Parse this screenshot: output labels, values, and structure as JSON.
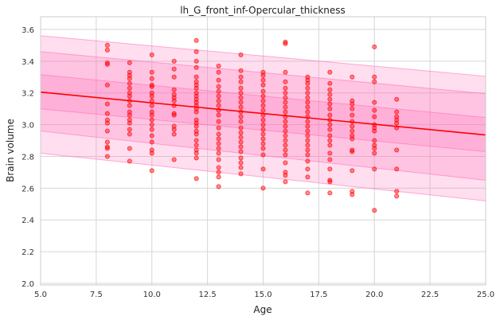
{
  "chart_data": {
    "type": "scatter",
    "title": "lh_G_front_inf-Opercular_thickness",
    "xlabel": "Age",
    "ylabel": "Brain volume",
    "xlim": [
      5.0,
      25.0
    ],
    "ylim": [
      1.99,
      3.68
    ],
    "xticks": [
      "5.0",
      "7.5",
      "10.0",
      "12.5",
      "15.0",
      "17.5",
      "20.0",
      "22.5",
      "25.0"
    ],
    "yticks": [
      "2.0",
      "2.2",
      "2.4",
      "2.6",
      "2.8",
      "3.0",
      "3.2",
      "3.4",
      "3.6"
    ],
    "grid": true,
    "point_color": "#ff0000",
    "line_color": "#ff0000",
    "band_color": "#ff69b4",
    "fit_line": {
      "x": [
        5.0,
        25.0
      ],
      "y": [
        3.205,
        2.935
      ]
    },
    "bands": [
      {
        "lower": [
          3.1,
          2.83
        ],
        "upper": [
          3.315,
          3.045
        ]
      },
      {
        "lower": [
          2.96,
          2.65
        ],
        "upper": [
          3.46,
          3.195
        ]
      },
      {
        "lower": [
          2.82,
          2.52
        ],
        "upper": [
          3.56,
          3.305
        ]
      }
    ],
    "points": [
      [
        8,
        3.5
      ],
      [
        8,
        3.47
      ],
      [
        8,
        3.39
      ],
      [
        8,
        3.38
      ],
      [
        8,
        3.25
      ],
      [
        8,
        3.13
      ],
      [
        8,
        3.07
      ],
      [
        8,
        3.03
      ],
      [
        8,
        3.01
      ],
      [
        8,
        2.96
      ],
      [
        8,
        2.89
      ],
      [
        8,
        2.86
      ],
      [
        8,
        2.85
      ],
      [
        8,
        2.8
      ],
      [
        9,
        3.39
      ],
      [
        9,
        3.33
      ],
      [
        9,
        3.31
      ],
      [
        9,
        3.29
      ],
      [
        9,
        3.26
      ],
      [
        9,
        3.23
      ],
      [
        9,
        3.2
      ],
      [
        9,
        3.18
      ],
      [
        9,
        3.15
      ],
      [
        9,
        3.12
      ],
      [
        9,
        3.08
      ],
      [
        9,
        3.06
      ],
      [
        9,
        3.03
      ],
      [
        9,
        3.01
      ],
      [
        9,
        2.97
      ],
      [
        9,
        2.94
      ],
      [
        9,
        2.85
      ],
      [
        9,
        2.77
      ],
      [
        10,
        3.44
      ],
      [
        10,
        3.33
      ],
      [
        10,
        3.29
      ],
      [
        10,
        3.25
      ],
      [
        10,
        3.24
      ],
      [
        10,
        3.2
      ],
      [
        10,
        3.18
      ],
      [
        10,
        3.15
      ],
      [
        10,
        3.12
      ],
      [
        10,
        3.08
      ],
      [
        10,
        3.06
      ],
      [
        10,
        3.03
      ],
      [
        10,
        3.0
      ],
      [
        10,
        2.97
      ],
      [
        10,
        2.93
      ],
      [
        10,
        2.89
      ],
      [
        10,
        2.84
      ],
      [
        10,
        2.82
      ],
      [
        10,
        2.71
      ],
      [
        11,
        3.4
      ],
      [
        11,
        3.35
      ],
      [
        11,
        3.3
      ],
      [
        11,
        3.22
      ],
      [
        11,
        3.19
      ],
      [
        11,
        3.17
      ],
      [
        11,
        3.15
      ],
      [
        11,
        3.12
      ],
      [
        11,
        3.07
      ],
      [
        11,
        3.06
      ],
      [
        11,
        2.99
      ],
      [
        11,
        2.97
      ],
      [
        11,
        2.94
      ],
      [
        11,
        2.78
      ],
      [
        12,
        3.53
      ],
      [
        12,
        3.46
      ],
      [
        12,
        3.4
      ],
      [
        12,
        3.36
      ],
      [
        12,
        3.3
      ],
      [
        12,
        3.27
      ],
      [
        12,
        3.25
      ],
      [
        12,
        3.23
      ],
      [
        12,
        3.2
      ],
      [
        12,
        3.18
      ],
      [
        12,
        3.16
      ],
      [
        12,
        3.14
      ],
      [
        12,
        3.12
      ],
      [
        12,
        3.1
      ],
      [
        12,
        3.08
      ],
      [
        12,
        3.03
      ],
      [
        12,
        3.01
      ],
      [
        12,
        2.99
      ],
      [
        12,
        2.96
      ],
      [
        12,
        2.94
      ],
      [
        12,
        2.9
      ],
      [
        12,
        2.87
      ],
      [
        12,
        2.84
      ],
      [
        12,
        2.82
      ],
      [
        12,
        2.79
      ],
      [
        12,
        2.66
      ],
      [
        13,
        3.37
      ],
      [
        13,
        3.33
      ],
      [
        13,
        3.28
      ],
      [
        13,
        3.24
      ],
      [
        13,
        3.21
      ],
      [
        13,
        3.18
      ],
      [
        13,
        3.15
      ],
      [
        13,
        3.12
      ],
      [
        13,
        3.09
      ],
      [
        13,
        3.06
      ],
      [
        13,
        3.02
      ],
      [
        13,
        2.98
      ],
      [
        13,
        2.94
      ],
      [
        13,
        2.91
      ],
      [
        13,
        2.88
      ],
      [
        13,
        2.85
      ],
      [
        13,
        2.82
      ],
      [
        13,
        2.78
      ],
      [
        13,
        2.73
      ],
      [
        13,
        2.7
      ],
      [
        13,
        2.67
      ],
      [
        13,
        2.61
      ],
      [
        14,
        3.44
      ],
      [
        14,
        3.34
      ],
      [
        14,
        3.3
      ],
      [
        14,
        3.27
      ],
      [
        14,
        3.23
      ],
      [
        14,
        3.2
      ],
      [
        14,
        3.17
      ],
      [
        14,
        3.14
      ],
      [
        14,
        3.11
      ],
      [
        14,
        3.08
      ],
      [
        14,
        3.05
      ],
      [
        14,
        3.02
      ],
      [
        14,
        2.98
      ],
      [
        14,
        2.95
      ],
      [
        14,
        2.92
      ],
      [
        14,
        2.89
      ],
      [
        14,
        2.86
      ],
      [
        14,
        2.83
      ],
      [
        14,
        2.79
      ],
      [
        14,
        2.76
      ],
      [
        14,
        2.73
      ],
      [
        14,
        2.69
      ],
      [
        15,
        3.33
      ],
      [
        15,
        3.31
      ],
      [
        15,
        3.28
      ],
      [
        15,
        3.25
      ],
      [
        15,
        3.21
      ],
      [
        15,
        3.18
      ],
      [
        15,
        3.15
      ],
      [
        15,
        3.12
      ],
      [
        15,
        3.09
      ],
      [
        15,
        3.06
      ],
      [
        15,
        3.03
      ],
      [
        15,
        3.0
      ],
      [
        15,
        2.97
      ],
      [
        15,
        2.94
      ],
      [
        15,
        2.91
      ],
      [
        15,
        2.88
      ],
      [
        15,
        2.85
      ],
      [
        15,
        2.81
      ],
      [
        15,
        2.72
      ],
      [
        15,
        2.6
      ],
      [
        16,
        3.52
      ],
      [
        16,
        3.51
      ],
      [
        16,
        3.33
      ],
      [
        16,
        3.27
      ],
      [
        16,
        3.23
      ],
      [
        16,
        3.2
      ],
      [
        16,
        3.17
      ],
      [
        16,
        3.14
      ],
      [
        16,
        3.11
      ],
      [
        16,
        3.08
      ],
      [
        16,
        3.05
      ],
      [
        16,
        3.02
      ],
      [
        16,
        2.99
      ],
      [
        16,
        2.96
      ],
      [
        16,
        2.93
      ],
      [
        16,
        2.9
      ],
      [
        16,
        2.87
      ],
      [
        16,
        2.84
      ],
      [
        16,
        2.81
      ],
      [
        16,
        2.76
      ],
      [
        16,
        2.7
      ],
      [
        16,
        2.68
      ],
      [
        16,
        2.64
      ],
      [
        17,
        3.3
      ],
      [
        17,
        3.28
      ],
      [
        17,
        3.26
      ],
      [
        17,
        3.23
      ],
      [
        17,
        3.2
      ],
      [
        17,
        3.17
      ],
      [
        17,
        3.14
      ],
      [
        17,
        3.11
      ],
      [
        17,
        3.08
      ],
      [
        17,
        3.05
      ],
      [
        17,
        3.02
      ],
      [
        17,
        2.99
      ],
      [
        17,
        2.96
      ],
      [
        17,
        2.93
      ],
      [
        17,
        2.9
      ],
      [
        17,
        2.87
      ],
      [
        17,
        2.84
      ],
      [
        17,
        2.81
      ],
      [
        17,
        2.77
      ],
      [
        17,
        2.72
      ],
      [
        17,
        2.67
      ],
      [
        17,
        2.57
      ],
      [
        18,
        3.33
      ],
      [
        18,
        3.26
      ],
      [
        18,
        3.22
      ],
      [
        18,
        3.19
      ],
      [
        18,
        3.16
      ],
      [
        18,
        3.13
      ],
      [
        18,
        3.1
      ],
      [
        18,
        3.06
      ],
      [
        18,
        3.03
      ],
      [
        18,
        3.0
      ],
      [
        18,
        2.97
      ],
      [
        18,
        2.93
      ],
      [
        18,
        2.9
      ],
      [
        18,
        2.87
      ],
      [
        18,
        2.82
      ],
      [
        18,
        2.78
      ],
      [
        18,
        2.72
      ],
      [
        18,
        2.65
      ],
      [
        18,
        2.64
      ],
      [
        18,
        2.57
      ],
      [
        19,
        3.3
      ],
      [
        19,
        3.15
      ],
      [
        19,
        3.13
      ],
      [
        19,
        3.1
      ],
      [
        19,
        3.06
      ],
      [
        19,
        3.02
      ],
      [
        19,
        2.99
      ],
      [
        19,
        2.96
      ],
      [
        19,
        2.93
      ],
      [
        19,
        2.91
      ],
      [
        19,
        2.84
      ],
      [
        19,
        2.83
      ],
      [
        19,
        2.71
      ],
      [
        19,
        2.58
      ],
      [
        19,
        2.56
      ],
      [
        20,
        3.49
      ],
      [
        20,
        3.3
      ],
      [
        20,
        3.27
      ],
      [
        20,
        3.14
      ],
      [
        20,
        3.09
      ],
      [
        20,
        3.05
      ],
      [
        20,
        3.0
      ],
      [
        20,
        2.98
      ],
      [
        20,
        2.96
      ],
      [
        20,
        2.9
      ],
      [
        20,
        2.87
      ],
      [
        20,
        2.85
      ],
      [
        20,
        2.82
      ],
      [
        20,
        2.72
      ],
      [
        20,
        2.46
      ],
      [
        21,
        3.16
      ],
      [
        21,
        3.08
      ],
      [
        21,
        3.05
      ],
      [
        21,
        3.03
      ],
      [
        21,
        3.01
      ],
      [
        21,
        2.98
      ],
      [
        21,
        2.84
      ],
      [
        21,
        2.72
      ],
      [
        21,
        2.58
      ],
      [
        21,
        2.55
      ]
    ]
  }
}
